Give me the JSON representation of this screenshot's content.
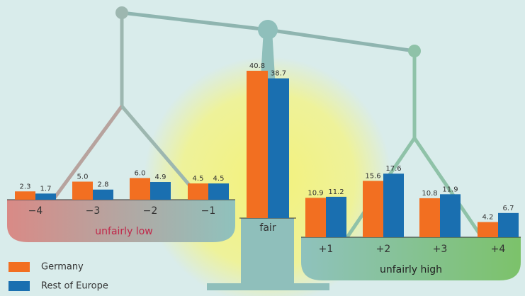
{
  "chart_data": {
    "type": "bar",
    "categories": [
      "−4",
      "−3",
      "−2",
      "−1",
      "fair",
      "+1",
      "+2",
      "+3",
      "+4"
    ],
    "group_labels": [
      "unfairly low",
      "unfairly high"
    ],
    "series": [
      {
        "name": "Germany",
        "color": "#f26f21",
        "values": [
          2.3,
          5.0,
          6.0,
          4.5,
          40.8,
          10.9,
          15.6,
          10.8,
          4.2
        ],
        "value_labels": [
          "2.3",
          "5.0",
          "6.0",
          "4.5",
          "40.8",
          "10.9",
          "15.6",
          "10.8",
          "4.2"
        ]
      },
      {
        "name": "Rest of Europe",
        "color": "#1a6fb0",
        "values": [
          1.7,
          2.8,
          4.9,
          4.5,
          38.7,
          11.2,
          17.6,
          11.9,
          6.7
        ],
        "value_labels": [
          "1.7",
          "2.8",
          "4.9",
          "4.5",
          "38.7",
          "11.2",
          "17.6",
          "11.9",
          "6.7"
        ]
      }
    ]
  }
}
